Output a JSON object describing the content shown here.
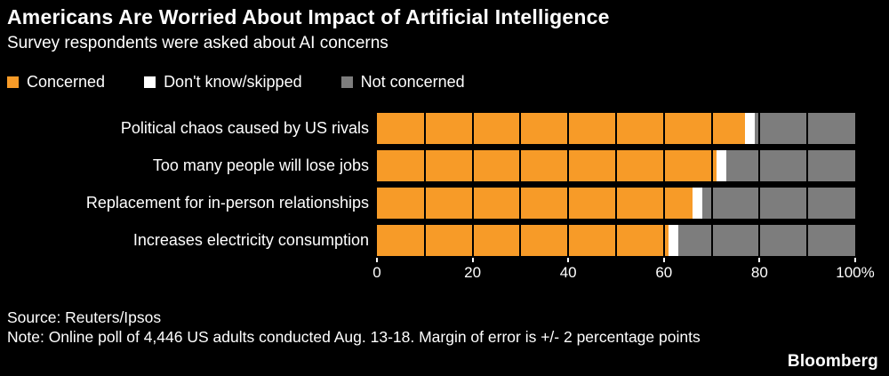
{
  "header": {
    "title": "Americans Are Worried About Impact of Artificial Intelligence",
    "subtitle": "Survey respondents were asked about AI concerns"
  },
  "legend": [
    {
      "label": "Concerned",
      "color": "#f79b28"
    },
    {
      "label": "Don't know/skipped",
      "color": "#ffffff"
    },
    {
      "label": "Not concerned",
      "color": "#7d7d7d"
    }
  ],
  "chart_data": {
    "type": "bar",
    "orientation": "horizontal",
    "stacked": true,
    "title": "Americans Are Worried About Impact of Artificial Intelligence",
    "subtitle": "Survey respondents were asked about AI concerns",
    "categories": [
      "Political chaos caused by US rivals",
      "Too many people will lose jobs",
      "Replacement for in-person relationships",
      "Increases electricity consumption"
    ],
    "series": [
      {
        "name": "Concerned",
        "key": "concerned",
        "color": "#f79b28",
        "values": [
          77,
          71,
          66,
          61
        ]
      },
      {
        "name": "Don't know/skipped",
        "key": "dont-know-skipped",
        "color": "#ffffff",
        "values": [
          2,
          2,
          2,
          2
        ]
      },
      {
        "name": "Not concerned",
        "key": "not-concerned",
        "color": "#7d7d7d",
        "values": [
          21,
          27,
          32,
          37
        ]
      }
    ],
    "xlim": [
      0,
      100
    ],
    "x_ticks": [
      0,
      20,
      40,
      60,
      80,
      100
    ],
    "x_tick_labels": [
      "0",
      "20",
      "40",
      "60",
      "80",
      "100%"
    ],
    "grid": {
      "step": 10,
      "color": "#000000"
    },
    "legend_position": "top",
    "background": "#000000"
  },
  "footer": {
    "source": "Source: Reuters/Ipsos",
    "note": "Note: Online poll of 4,446 US adults conducted Aug. 13-18. Margin of error is +/- 2 percentage points",
    "brand": "Bloomberg"
  }
}
